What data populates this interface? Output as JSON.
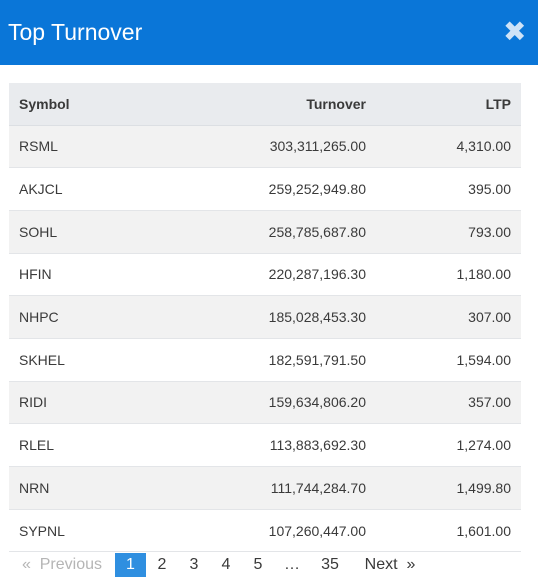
{
  "header": {
    "title": "Top Turnover",
    "close_glyph": "✖"
  },
  "table": {
    "columns": [
      "Symbol",
      "Turnover",
      "LTP"
    ],
    "rows": [
      {
        "symbol": "RSML",
        "turnover": "303,311,265.00",
        "ltp": "4,310.00"
      },
      {
        "symbol": "AKJCL",
        "turnover": "259,252,949.80",
        "ltp": "395.00"
      },
      {
        "symbol": "SOHL",
        "turnover": "258,785,687.80",
        "ltp": "793.00"
      },
      {
        "symbol": "HFIN",
        "turnover": "220,287,196.30",
        "ltp": "1,180.00"
      },
      {
        "symbol": "NHPC",
        "turnover": "185,028,453.30",
        "ltp": "307.00"
      },
      {
        "symbol": "SKHEL",
        "turnover": "182,591,791.50",
        "ltp": "1,594.00"
      },
      {
        "symbol": "RIDI",
        "turnover": "159,634,806.20",
        "ltp": "357.00"
      },
      {
        "symbol": "RLEL",
        "turnover": "113,883,692.30",
        "ltp": "1,274.00"
      },
      {
        "symbol": "NRN",
        "turnover": "111,744,284.70",
        "ltp": "1,499.80"
      },
      {
        "symbol": "SYPNL",
        "turnover": "107,260,447.00",
        "ltp": "1,601.00"
      }
    ]
  },
  "pagination": {
    "previous": "«  Previous",
    "pages": [
      "1",
      "2",
      "3",
      "4",
      "5"
    ],
    "ellipsis": "…",
    "last": "35",
    "next": "Next  »",
    "current_page": "1"
  },
  "colors": {
    "header_bg": "#0a76d8",
    "current_page_bg": "#2f8fe0",
    "row_stripe": "#f2f2f2",
    "header_row_bg": "#e9ebee"
  },
  "icons": {
    "close": "close-icon"
  }
}
